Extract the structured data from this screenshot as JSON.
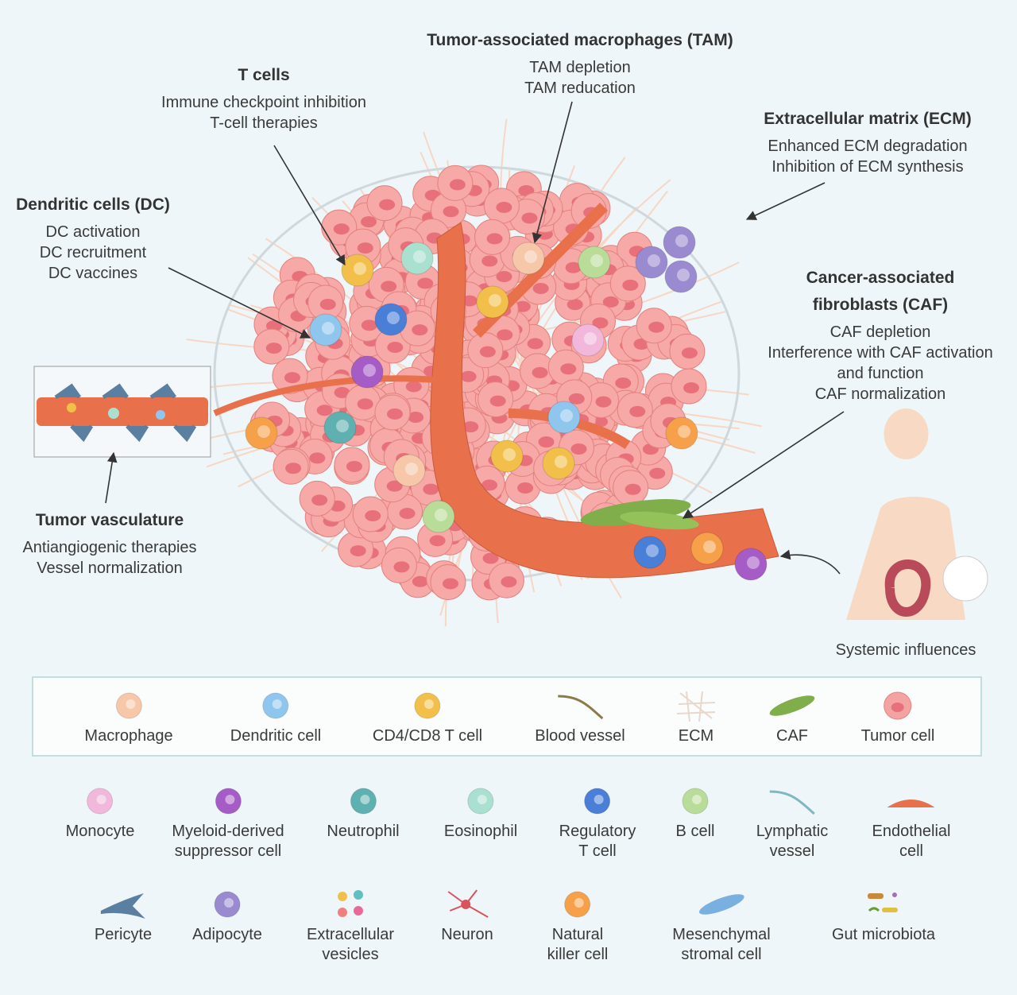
{
  "annotations": {
    "tam": {
      "title": "Tumor-associated macrophages (TAM)",
      "lines": [
        "TAM depletion",
        "TAM reducation"
      ]
    },
    "tcells": {
      "title": "T cells",
      "lines": [
        "Immune checkpoint inhibition",
        "T-cell therapies"
      ]
    },
    "ecm": {
      "title": "Extracellular matrix (ECM)",
      "lines": [
        "Enhanced ECM degradation",
        "Inhibition of ECM synthesis"
      ]
    },
    "dc": {
      "title": "Dendritic cells (DC)",
      "lines": [
        "DC activation",
        "DC recruitment",
        "DC vaccines"
      ]
    },
    "caf": {
      "title": "Cancer-associated fibroblasts (CAF)",
      "title_lines": [
        "Cancer-associated",
        "fibroblasts (CAF)"
      ],
      "lines": [
        "CAF depletion",
        "Interference with CAF activation",
        "and function",
        "CAF normalization"
      ]
    },
    "vasculature": {
      "title": "Tumor vasculature",
      "lines": [
        "Antiangiogenic therapies",
        "Vessel normalization"
      ]
    },
    "systemic": {
      "title": "Systemic influences"
    }
  },
  "legend_boxed": [
    {
      "label": "Macrophage",
      "icon": "macrophage-icon",
      "color": "#f6c7a8"
    },
    {
      "label": "Dendritic cell",
      "icon": "dendritic-cell-icon",
      "color": "#8fc6ee"
    },
    {
      "label": "CD4/CD8 T cell",
      "icon": "t-cell-icon",
      "color": "#f2c04a"
    },
    {
      "label": "Blood vessel",
      "icon": "blood-vessel-icon",
      "color": "#8c7a4a"
    },
    {
      "label": "ECM",
      "icon": "ecm-icon",
      "color": "#e8d8cc"
    },
    {
      "label": "CAF",
      "icon": "caf-icon",
      "color": "#7fae4a"
    },
    {
      "label": "Tumor cell",
      "icon": "tumor-cell-icon",
      "color": "#f4a3a3"
    }
  ],
  "legend_row2": [
    {
      "label": "Monocyte",
      "icon": "monocyte-icon",
      "color": "#f1b8dc"
    },
    {
      "label": "Myeloid-derived\nsuppressor cell",
      "icon": "mdsc-icon",
      "color": "#a65cc6"
    },
    {
      "label": "Neutrophil",
      "icon": "neutrophil-icon",
      "color": "#5fb0b0"
    },
    {
      "label": "Eosinophil",
      "icon": "eosinophil-icon",
      "color": "#a9e0d0"
    },
    {
      "label": "Regulatory\nT cell",
      "icon": "regulatory-t-cell-icon",
      "color": "#4a7fd8"
    },
    {
      "label": "B cell",
      "icon": "b-cell-icon",
      "color": "#b9dc98"
    },
    {
      "label": "Lymphatic\nvessel",
      "icon": "lymphatic-vessel-icon",
      "color": "#7fb8c0"
    },
    {
      "label": "Endothelial\ncell",
      "icon": "endothelial-cell-icon",
      "color": "#e8704a"
    }
  ],
  "legend_row3": [
    {
      "label": "Pericyte",
      "icon": "pericyte-icon",
      "color": "#5a7fa0"
    },
    {
      "label": "Adipocyte",
      "icon": "adipocyte-icon",
      "color": "#9a8ad0"
    },
    {
      "label": "Extracellular\nvesicles",
      "icon": "extracellular-vesicles-icon",
      "color": "#e86a9a"
    },
    {
      "label": "Neuron",
      "icon": "neuron-icon",
      "color": "#d8545a"
    },
    {
      "label": "Natural\nkiller cell",
      "icon": "nk-cell-icon",
      "color": "#f7a04a"
    },
    {
      "label": "Mesenchymal\nstromal cell",
      "icon": "mesenchymal-stromal-cell-icon",
      "color": "#7ab0e0"
    },
    {
      "label": "Gut microbiota",
      "icon": "gut-microbiota-icon",
      "color": "#c88a3a"
    }
  ]
}
